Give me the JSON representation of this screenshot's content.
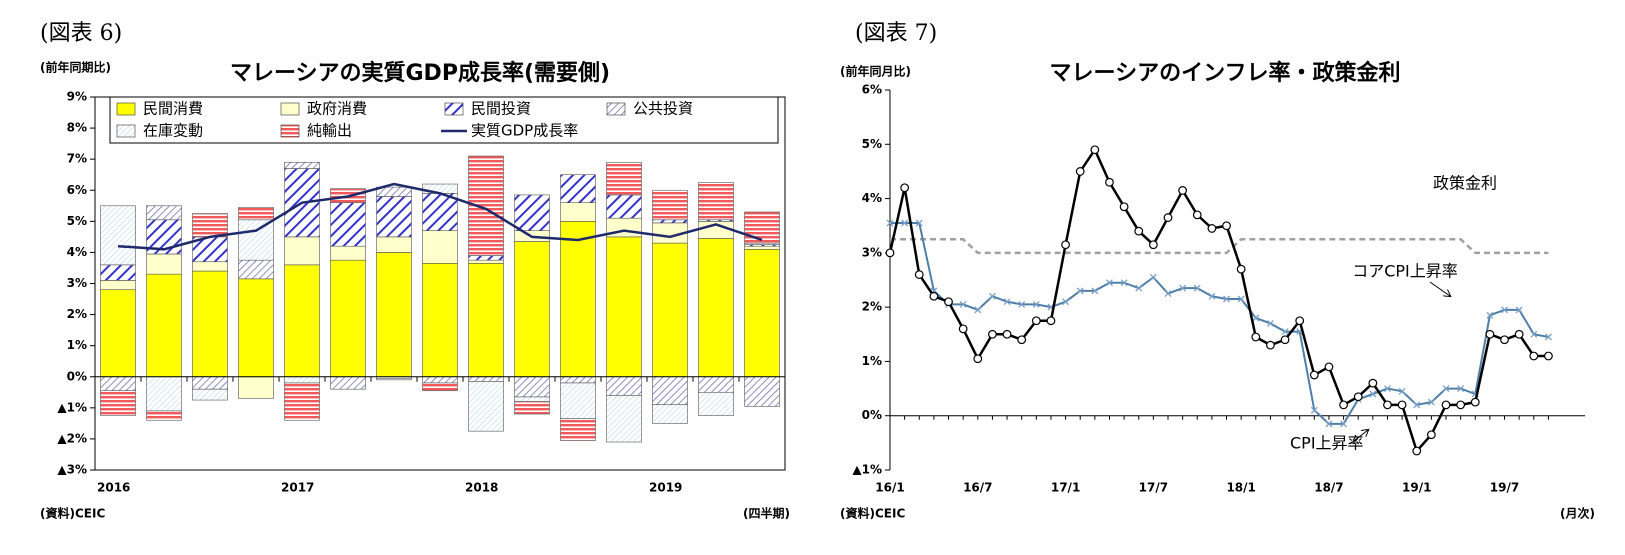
{
  "chart_data": [
    {
      "type": "bar",
      "stacked": true,
      "figure_label": "(図表 6)",
      "title": "マレーシアの実質GDP成長率(需要側)",
      "y_label": "(前年同期比)",
      "source": "(資料)CEIC",
      "x_label": "(四半期)",
      "categories": [
        "2016",
        null,
        null,
        null,
        "2017",
        null,
        null,
        null,
        "2018",
        null,
        null,
        null,
        "2019",
        null,
        null
      ],
      "ylim": [
        -3,
        9
      ],
      "yticks": [
        {
          "value": 9,
          "label": "9%"
        },
        {
          "value": 8,
          "label": "8%"
        },
        {
          "value": 7,
          "label": "7%"
        },
        {
          "value": 6,
          "label": "6%"
        },
        {
          "value": 5,
          "label": "5%"
        },
        {
          "value": 4,
          "label": "4%"
        },
        {
          "value": 3,
          "label": "3%"
        },
        {
          "value": 2,
          "label": "2%"
        },
        {
          "value": 1,
          "label": "1%"
        },
        {
          "value": 0,
          "label": "0%"
        },
        {
          "value": -1,
          "label": "▲1%"
        },
        {
          "value": -2,
          "label": "▲2%"
        },
        {
          "value": -3,
          "label": "▲3%"
        }
      ],
      "legend": "top",
      "series": [
        {
          "name": "民間消費",
          "color": "#ffff00",
          "values": [
            2.8,
            3.3,
            3.4,
            3.15,
            3.6,
            3.75,
            4.0,
            3.65,
            3.65,
            4.35,
            5.0,
            4.5,
            4.3,
            4.45,
            4.1
          ]
        },
        {
          "name": "政府消費",
          "color": "#ffffcc",
          "values": [
            0.3,
            0.65,
            0.3,
            -0.7,
            0.9,
            0.45,
            0.5,
            1.05,
            0.1,
            0.35,
            0.6,
            0.6,
            0.65,
            0.55,
            0.1
          ]
        },
        {
          "name": "民間投資",
          "color": "#3333cc",
          "values": [
            0.5,
            1.1,
            0.8,
            0,
            2.2,
            1.4,
            1.3,
            1.2,
            0.15,
            1.15,
            0.9,
            0.75,
            0.1,
            0.05,
            0.05
          ]
        },
        {
          "name": "公共投資",
          "color": "#6a6ab0",
          "values": [
            -0.45,
            0.45,
            -0.4,
            0.6,
            0.2,
            -0.4,
            0.3,
            -0.2,
            -0.15,
            -0.65,
            -0.2,
            -0.6,
            -0.9,
            -0.5,
            -0.95
          ]
        },
        {
          "name": "在庫変動",
          "color": "#9cc8e6",
          "values": [
            1.9,
            -1.1,
            -0.35,
            1.3,
            -0.2,
            0,
            -0.05,
            0.3,
            -1.6,
            -0.15,
            -1.15,
            -1.5,
            -0.6,
            -0.75,
            0.05
          ]
        },
        {
          "name": "純輸出",
          "color": "#f05a5a",
          "values": [
            -0.8,
            -0.3,
            0.75,
            0.4,
            -1.2,
            0.45,
            -0.05,
            -0.25,
            3.2,
            -0.4,
            -0.7,
            1.05,
            0.95,
            1.2,
            1.0
          ]
        },
        {
          "name": "実質GDP成長率",
          "type": "line",
          "color": "#1f2a6b",
          "values": [
            4.2,
            4.1,
            4.5,
            4.7,
            5.6,
            5.8,
            6.2,
            5.9,
            5.4,
            4.5,
            4.4,
            4.7,
            4.5,
            4.9,
            4.4
          ]
        }
      ]
    },
    {
      "type": "line",
      "figure_label": "(図表 7)",
      "title": "マレーシアのインフレ率・政策金利",
      "y_label": "(前年同月比)",
      "source": "(資料)CEIC",
      "x_label": "(月次)",
      "categories": [
        "16/1",
        null,
        null,
        null,
        null,
        null,
        "16/7",
        null,
        null,
        null,
        null,
        null,
        "17/1",
        null,
        null,
        null,
        null,
        null,
        "17/7",
        null,
        null,
        null,
        null,
        null,
        "18/1",
        null,
        null,
        null,
        null,
        null,
        "18/7",
        null,
        null,
        null,
        null,
        null,
        "19/1",
        null,
        null,
        null,
        null,
        null,
        "19/7",
        null,
        null,
        null
      ],
      "ylim": [
        -1,
        6
      ],
      "yticks": [
        {
          "value": 6,
          "label": "6%"
        },
        {
          "value": 5,
          "label": "5%"
        },
        {
          "value": 4,
          "label": "4%"
        },
        {
          "value": 3,
          "label": "3%"
        },
        {
          "value": 2,
          "label": "2%"
        },
        {
          "value": 1,
          "label": "1%"
        },
        {
          "value": 0,
          "label": "0%"
        },
        {
          "value": -1,
          "label": "▲1%"
        }
      ],
      "series": [
        {
          "name": "CPI上昇率",
          "color": "#000000",
          "values": [
            3.0,
            4.2,
            2.6,
            2.2,
            2.1,
            1.6,
            1.05,
            1.5,
            1.5,
            1.4,
            1.75,
            1.75,
            3.15,
            4.5,
            4.9,
            4.3,
            3.85,
            3.4,
            3.15,
            3.65,
            4.15,
            3.7,
            3.45,
            3.5,
            2.7,
            1.45,
            1.3,
            1.4,
            1.75,
            0.75,
            0.9,
            0.2,
            0.35,
            0.6,
            0.2,
            0.2,
            -0.65,
            -0.35,
            0.2,
            0.2,
            0.25,
            1.5,
            1.4,
            1.5,
            1.1,
            1.1
          ]
        },
        {
          "name": "コアCPI上昇率",
          "color": "#4f7fa8",
          "values": [
            3.55,
            3.55,
            3.55,
            2.3,
            2.05,
            2.05,
            1.95,
            2.2,
            2.1,
            2.05,
            2.05,
            2.0,
            2.1,
            2.3,
            2.3,
            2.45,
            2.45,
            2.35,
            2.55,
            2.25,
            2.35,
            2.35,
            2.2,
            2.15,
            2.15,
            1.8,
            1.7,
            1.55,
            1.55,
            0.1,
            -0.15,
            -0.15,
            0.3,
            0.4,
            0.5,
            0.45,
            0.2,
            0.25,
            0.5,
            0.5,
            0.4,
            1.85,
            1.95,
            1.95,
            1.5,
            1.45
          ]
        },
        {
          "name": "政策金利",
          "color": "#a0a0a0",
          "dashed": true,
          "values": [
            3.25,
            3.25,
            3.25,
            3.25,
            3.25,
            3.25,
            3.0,
            3.0,
            3.0,
            3.0,
            3.0,
            3.0,
            3.0,
            3.0,
            3.0,
            3.0,
            3.0,
            3.0,
            3.0,
            3.0,
            3.0,
            3.0,
            3.0,
            3.0,
            3.25,
            3.25,
            3.25,
            3.25,
            3.25,
            3.25,
            3.25,
            3.25,
            3.25,
            3.25,
            3.25,
            3.25,
            3.25,
            3.25,
            3.25,
            3.25,
            3.0,
            3.0,
            3.0,
            3.0,
            3.0,
            3.0
          ]
        }
      ]
    }
  ]
}
